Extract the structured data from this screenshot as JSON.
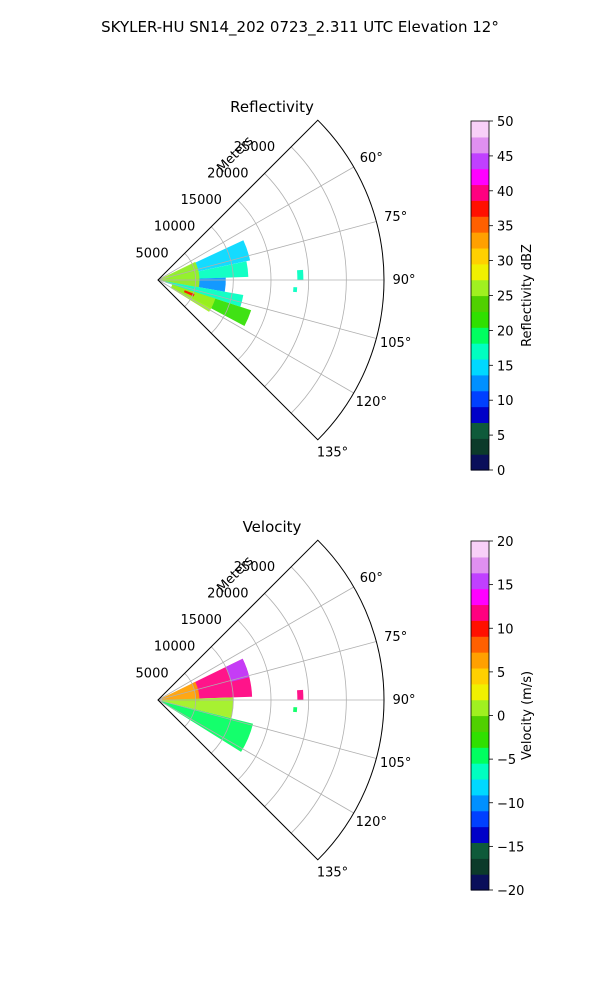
{
  "figure_title": "SKYLER-HU  SN14_202  0723_2.311 UTC Elevation 12°",
  "chart_data": [
    {
      "type": "heatmap",
      "subtype": "polar-sector",
      "title": "Reflectivity",
      "radial_label": "Meters",
      "radial_ticks": [
        5000,
        10000,
        15000,
        20000,
        25000
      ],
      "radial_tick_labels": [
        "5000",
        "10000",
        "15000",
        "20000",
        "25000"
      ],
      "rlim": [
        0,
        30000
      ],
      "azimuth_range_deg": [
        45,
        135
      ],
      "azimuth_ticks": [
        60,
        75,
        90,
        105,
        120,
        135
      ],
      "azimuth_tick_labels": [
        "60°",
        "75°",
        "90°",
        "105°",
        "120°",
        "135°"
      ],
      "grid": true,
      "colorbar": {
        "label": "Reflectivity dBZ",
        "range": [
          0,
          50
        ],
        "ticks": [
          "0",
          "5",
          "10",
          "15",
          "20",
          "25",
          "30",
          "35",
          "40",
          "45",
          "50"
        ],
        "colors": [
          "#0a0f5a",
          "#0c3a2a",
          "#0e5a3a",
          "#0000c8",
          "#0040ff",
          "#0090ff",
          "#00d8ff",
          "#00ffc0",
          "#00ff60",
          "#30e000",
          "#50d000",
          "#a0f020",
          "#f0f000",
          "#ffd000",
          "#ffa000",
          "#ff6000",
          "#ff1000",
          "#ff0080",
          "#ff00ff",
          "#c040ff",
          "#e090f0",
          "#f8d0f8"
        ]
      },
      "data_regions": [
        {
          "az": [
            65,
            78
          ],
          "r": [
            1500,
            12500
          ],
          "value": 14
        },
        {
          "az": [
            78,
            88
          ],
          "r": [
            1000,
            12000
          ],
          "value": 16
        },
        {
          "az": [
            88,
            100
          ],
          "r": [
            500,
            9000
          ],
          "value": 13
        },
        {
          "az": [
            100,
            108
          ],
          "r": [
            1000,
            11500
          ],
          "value": 18
        },
        {
          "az": [
            108,
            118
          ],
          "r": [
            2000,
            13000
          ],
          "value": 22
        },
        {
          "az": [
            64,
            100
          ],
          "r": [
            300,
            5500
          ],
          "value": 27
        },
        {
          "az": [
            108,
            122
          ],
          "r": [
            2000,
            8000
          ],
          "value": 25
        },
        {
          "az": [
            111,
            115
          ],
          "r": [
            3800,
            5200
          ],
          "value": 37
        },
        {
          "az": [
            86,
            90
          ],
          "r": [
            18500,
            19300
          ],
          "value": 17
        },
        {
          "az": [
            93,
            95
          ],
          "r": [
            18000,
            18500
          ],
          "value": 17
        }
      ]
    },
    {
      "type": "heatmap",
      "subtype": "polar-sector",
      "title": "Velocity",
      "radial_label": "Meters",
      "radial_ticks": [
        5000,
        10000,
        15000,
        20000,
        25000
      ],
      "radial_tick_labels": [
        "5000",
        "10000",
        "15000",
        "20000",
        "25000"
      ],
      "rlim": [
        0,
        30000
      ],
      "azimuth_range_deg": [
        45,
        135
      ],
      "azimuth_ticks": [
        60,
        75,
        90,
        105,
        120,
        135
      ],
      "azimuth_tick_labels": [
        "60°",
        "75°",
        "90°",
        "105°",
        "120°",
        "135°"
      ],
      "grid": true,
      "colorbar": {
        "label": "Velocity (m/s)",
        "range": [
          -20,
          20
        ],
        "ticks": [
          "−20",
          "−15",
          "−10",
          "−5",
          "0",
          "5",
          "10",
          "15",
          "20"
        ],
        "colors": [
          "#0a0f5a",
          "#0c3a2a",
          "#0e5a3a",
          "#0000c8",
          "#0040ff",
          "#0090ff",
          "#00d8ff",
          "#00ffc0",
          "#00ff60",
          "#30e000",
          "#50d000",
          "#a0f020",
          "#f0f000",
          "#ffd000",
          "#ffa000",
          "#ff6000",
          "#ff1000",
          "#ff0080",
          "#ff00ff",
          "#c040ff",
          "#e090f0",
          "#f8d0f8"
        ]
      },
      "data_regions": [
        {
          "az": [
            64,
            88
          ],
          "r": [
            5000,
            12500
          ],
          "value": 11
        },
        {
          "az": [
            64,
            76
          ],
          "r": [
            10000,
            12500
          ],
          "value": 16
        },
        {
          "az": [
            64,
            92
          ],
          "r": [
            500,
            5500
          ],
          "value": 6
        },
        {
          "az": [
            88,
            104
          ],
          "r": [
            500,
            10000
          ],
          "value": 0
        },
        {
          "az": [
            104,
            122
          ],
          "r": [
            500,
            13000
          ],
          "value": -4
        },
        {
          "az": [
            86,
            90
          ],
          "r": [
            18500,
            19300
          ],
          "value": 11
        },
        {
          "az": [
            93,
            95
          ],
          "r": [
            18000,
            18500
          ],
          "value": -5
        }
      ]
    }
  ]
}
